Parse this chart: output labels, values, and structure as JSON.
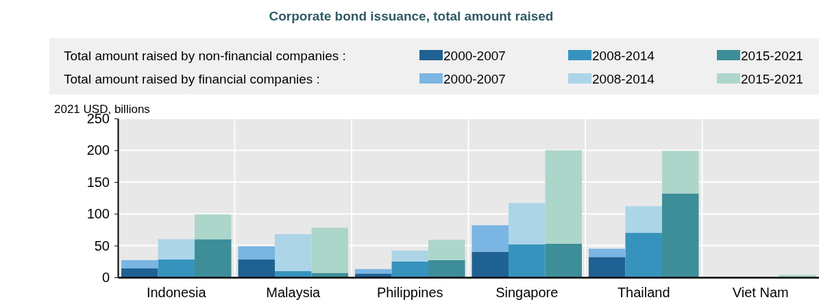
{
  "chart_data": {
    "type": "bar",
    "title": "Corporate bond issuance, total amount raised",
    "ylabel": "2021 USD, billions",
    "annotations": [
      "Total amount raised by non-financial companies :",
      "Total amount raised by financial companies :"
    ],
    "categories": [
      null,
      "Indonesia",
      null,
      null,
      "Malaysia",
      null,
      null,
      "Philippines",
      null,
      null,
      "Singapore",
      null,
      null,
      "Thailand",
      null,
      null,
      "Viet Nam",
      null
    ],
    "stacked": true,
    "grid": true,
    "legend": "top",
    "ylim": [
      0,
      250
    ],
    "yticks": [
      0,
      50,
      100,
      150,
      200,
      250
    ],
    "series": [
      {
        "name": "2000-2007",
        "color": "#1f6193",
        "values": [
          14,
          null,
          null,
          28,
          null,
          null,
          6,
          null,
          null,
          40,
          null,
          null,
          32,
          null,
          null,
          0,
          null,
          null
        ]
      },
      {
        "name": "2008-2014",
        "color": "#3793bd",
        "values": [
          null,
          28,
          null,
          null,
          10,
          null,
          null,
          25,
          null,
          null,
          52,
          null,
          null,
          70,
          null,
          null,
          0,
          null
        ]
      },
      {
        "name": "2015-2021",
        "color": "#3d8e98",
        "values": [
          null,
          null,
          60,
          null,
          null,
          7,
          null,
          null,
          27,
          null,
          null,
          53,
          null,
          null,
          132,
          null,
          null,
          null
        ]
      },
      {
        "name": "2000-2007",
        "color": "#7ab5e3",
        "values": [
          13,
          null,
          null,
          21,
          null,
          null,
          7,
          null,
          null,
          42,
          null,
          null,
          13,
          null,
          null,
          0,
          null,
          null
        ]
      },
      {
        "name": "2008-2014",
        "color": "#acd5e8",
        "values": [
          null,
          32,
          null,
          null,
          58,
          null,
          null,
          17,
          null,
          null,
          65,
          null,
          null,
          42,
          null,
          null,
          0,
          null
        ]
      },
      {
        "name": "2015-2021",
        "color": "#add6cb",
        "values": [
          null,
          null,
          39,
          null,
          null,
          71,
          null,
          null,
          32,
          null,
          null,
          147,
          null,
          null,
          67,
          null,
          null,
          4
        ]
      }
    ]
  }
}
